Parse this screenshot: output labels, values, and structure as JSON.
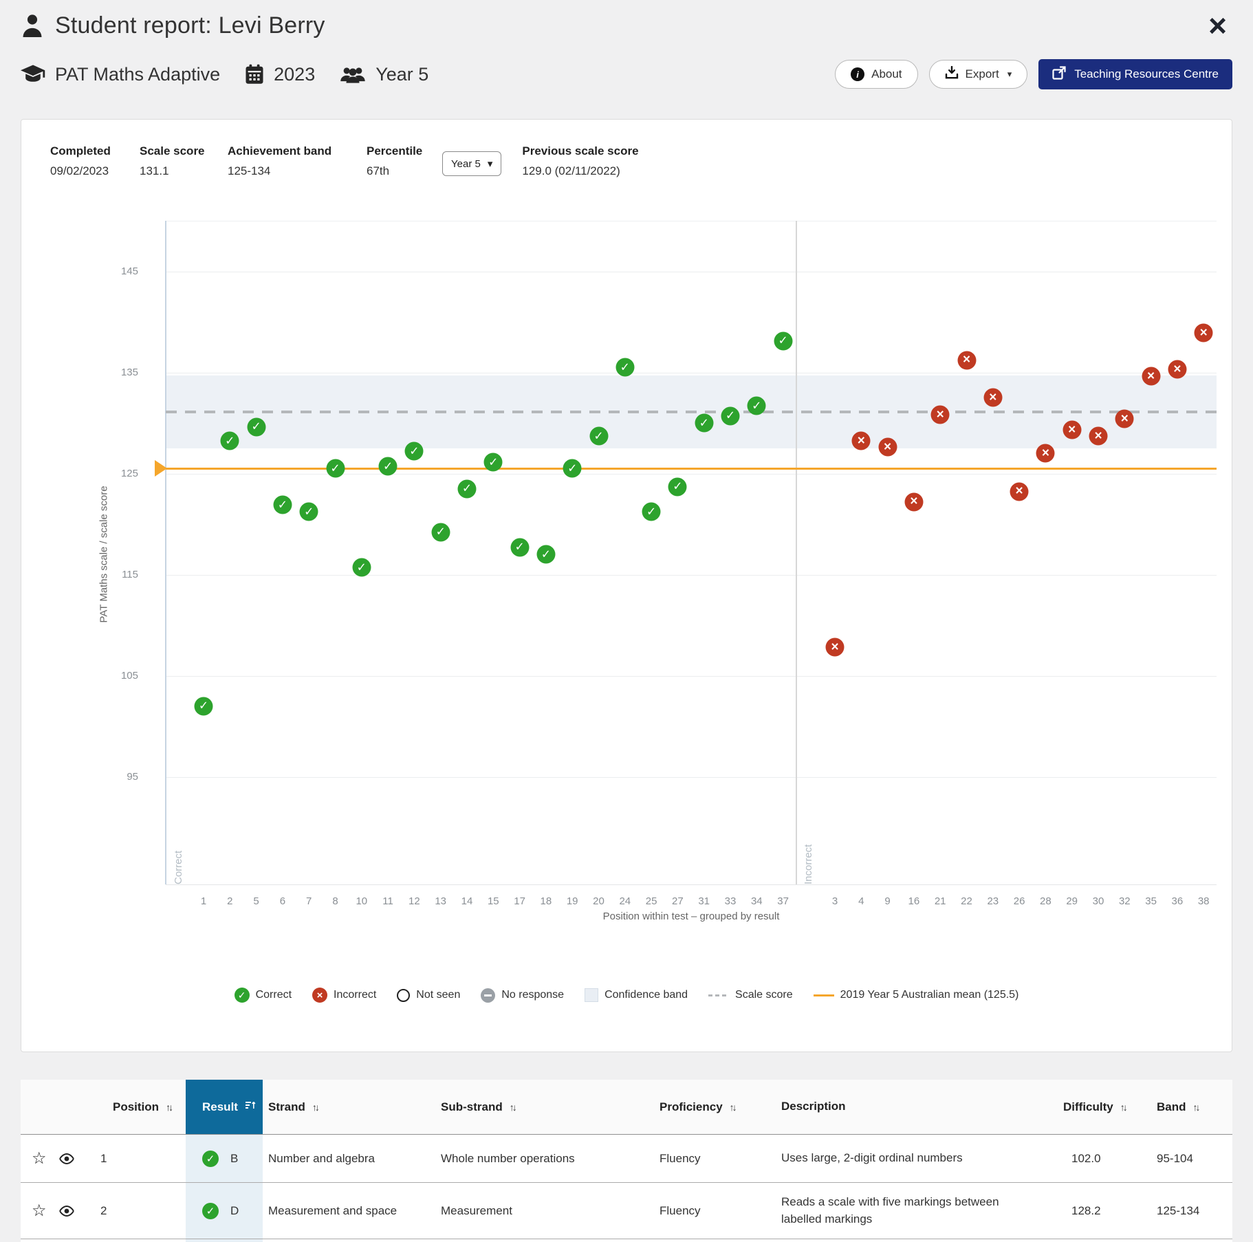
{
  "header": {
    "title": "Student report: Levi Berry"
  },
  "subheader": {
    "assessment": "PAT Maths Adaptive",
    "year": "2023",
    "cohort": "Year 5",
    "buttons": {
      "about": "About",
      "export": "Export",
      "trc": "Teaching Resources Centre"
    }
  },
  "stats": {
    "completed": {
      "label": "Completed",
      "value": "09/02/2023"
    },
    "scale_score": {
      "label": "Scale score",
      "value": "131.1"
    },
    "achievement_band": {
      "label": "Achievement band",
      "value": "125-134"
    },
    "percentile": {
      "label": "Percentile",
      "value": "67th"
    },
    "year_select": {
      "value": "Year 5",
      "caret": "▾"
    },
    "previous": {
      "label": "Previous scale score",
      "value": "129.0 (02/11/2022)"
    }
  },
  "chart_data": {
    "type": "scatter",
    "ylabel": "PAT Maths scale / scale score",
    "xlabel": "Position within test – grouped by result",
    "yticks": [
      95,
      105,
      115,
      125,
      135,
      145
    ],
    "ylim": [
      84.3,
      150
    ],
    "groups": [
      "Correct",
      "Incorrect"
    ],
    "scale_score": 131.1,
    "mean_line": 125.5,
    "confidence_band": [
      127.5,
      134.7
    ],
    "points": [
      {
        "pos": 1,
        "result": "correct",
        "value": 102.0
      },
      {
        "pos": 2,
        "result": "correct",
        "value": 128.2
      },
      {
        "pos": 5,
        "result": "correct",
        "value": 129.6
      },
      {
        "pos": 6,
        "result": "correct",
        "value": 121.9
      },
      {
        "pos": 7,
        "result": "correct",
        "value": 121.2
      },
      {
        "pos": 8,
        "result": "correct",
        "value": 125.5
      },
      {
        "pos": 10,
        "result": "correct",
        "value": 115.7
      },
      {
        "pos": 11,
        "result": "correct",
        "value": 125.7
      },
      {
        "pos": 12,
        "result": "correct",
        "value": 127.2
      },
      {
        "pos": 13,
        "result": "correct",
        "value": 119.2
      },
      {
        "pos": 14,
        "result": "correct",
        "value": 123.5
      },
      {
        "pos": 15,
        "result": "correct",
        "value": 126.1
      },
      {
        "pos": 17,
        "result": "correct",
        "value": 117.7
      },
      {
        "pos": 18,
        "result": "correct",
        "value": 117.0
      },
      {
        "pos": 19,
        "result": "correct",
        "value": 125.5
      },
      {
        "pos": 20,
        "result": "correct",
        "value": 128.7
      },
      {
        "pos": 24,
        "result": "correct",
        "value": 135.5
      },
      {
        "pos": 25,
        "result": "correct",
        "value": 121.2
      },
      {
        "pos": 27,
        "result": "correct",
        "value": 123.7
      },
      {
        "pos": 31,
        "result": "correct",
        "value": 130.0
      },
      {
        "pos": 33,
        "result": "correct",
        "value": 130.7
      },
      {
        "pos": 34,
        "result": "correct",
        "value": 131.7
      },
      {
        "pos": 37,
        "result": "correct",
        "value": 138.1
      },
      {
        "pos": 3,
        "result": "incorrect",
        "value": 107.8
      },
      {
        "pos": 4,
        "result": "incorrect",
        "value": 128.2
      },
      {
        "pos": 9,
        "result": "incorrect",
        "value": 127.6
      },
      {
        "pos": 16,
        "result": "incorrect",
        "value": 122.2
      },
      {
        "pos": 21,
        "result": "incorrect",
        "value": 130.8
      },
      {
        "pos": 22,
        "result": "incorrect",
        "value": 136.2
      },
      {
        "pos": 23,
        "result": "incorrect",
        "value": 132.5
      },
      {
        "pos": 26,
        "result": "incorrect",
        "value": 123.2
      },
      {
        "pos": 28,
        "result": "incorrect",
        "value": 127.0
      },
      {
        "pos": 29,
        "result": "incorrect",
        "value": 129.3
      },
      {
        "pos": 30,
        "result": "incorrect",
        "value": 128.7
      },
      {
        "pos": 32,
        "result": "incorrect",
        "value": 130.4
      },
      {
        "pos": 35,
        "result": "incorrect",
        "value": 134.6
      },
      {
        "pos": 36,
        "result": "incorrect",
        "value": 135.3
      },
      {
        "pos": 38,
        "result": "incorrect",
        "value": 138.9
      }
    ],
    "legend": [
      {
        "label": "Correct"
      },
      {
        "label": "Incorrect"
      },
      {
        "label": "Not seen"
      },
      {
        "label": "No response"
      },
      {
        "label": "Confidence band"
      },
      {
        "label": "Scale score"
      },
      {
        "label": "2019 Year 5 Australian mean (125.5)"
      }
    ],
    "colors": {
      "correct": "#2da32d",
      "incorrect": "#c03a22",
      "mean_line": "#f5a62b",
      "scale_line": "#b4b7ba",
      "confidence_band": "#edf1f6"
    }
  },
  "table": {
    "sort_glyph": "↑↓",
    "columns": [
      {
        "label": "Position"
      },
      {
        "label": "Result"
      },
      {
        "label": "Strand"
      },
      {
        "label": "Sub-strand"
      },
      {
        "label": "Proficiency"
      },
      {
        "label": "Description"
      },
      {
        "label": "Difficulty"
      },
      {
        "label": "Band"
      }
    ],
    "rows": [
      {
        "position": "1",
        "result": "B",
        "strand": "Number and algebra",
        "sub_strand": "Whole number operations",
        "proficiency": "Fluency",
        "description": "Uses large, 2-digit ordinal numbers",
        "difficulty": "102.0",
        "band": "95-104"
      },
      {
        "position": "2",
        "result": "D",
        "strand": "Measurement and space",
        "sub_strand": "Measurement",
        "proficiency": "Fluency",
        "description": "Reads a scale with five markings between labelled markings",
        "difficulty": "128.2",
        "band": "125-134"
      }
    ]
  }
}
